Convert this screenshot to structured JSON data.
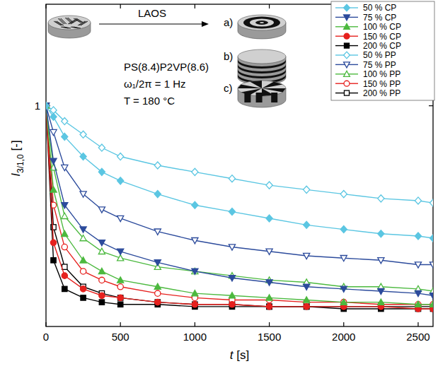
{
  "chart_data": {
    "type": "line",
    "xlabel": {
      "main": "t",
      "unit": "[s]"
    },
    "ylabel": {
      "main": "I",
      "sub": "3/1,0",
      "unit": "[-]"
    },
    "annotations": [
      "LAOS",
      "a)",
      "b)",
      "c)",
      "PS(8.4)P2VP(8.6)",
      "ω₁/2π = 1 Hz",
      "T = 180 °C"
    ],
    "x": [
      0,
      50,
      125,
      250,
      375,
      500,
      750,
      1000,
      1250,
      1500,
      1750,
      2000,
      2250,
      2500,
      2600
    ],
    "xlim": [
      0,
      2600
    ],
    "xticks": [
      0,
      500,
      1000,
      1500,
      2000,
      2500
    ],
    "ylim": [
      0,
      1.46
    ],
    "yticks": [
      1
    ],
    "grid": false,
    "legend": "upper right",
    "series": [
      {
        "name": "50 % CP",
        "color": "#5bc6e2",
        "marker": "diamond",
        "values": [
          1.0,
          0.95,
          0.86,
          0.77,
          0.7,
          0.66,
          0.6,
          0.55,
          0.52,
          0.49,
          0.46,
          0.44,
          0.42,
          0.41,
          0.4
        ]
      },
      {
        "name": "75 % CP",
        "color": "#2c4b9c",
        "marker": "triangle-down",
        "values": [
          1.0,
          0.75,
          0.55,
          0.44,
          0.38,
          0.34,
          0.29,
          0.25,
          0.22,
          0.2,
          0.18,
          0.17,
          0.16,
          0.15,
          0.14
        ]
      },
      {
        "name": "100 % CP",
        "color": "#4cb93f",
        "marker": "triangle-up",
        "values": [
          1.0,
          0.62,
          0.42,
          0.3,
          0.25,
          0.21,
          0.18,
          0.15,
          0.14,
          0.13,
          0.12,
          0.11,
          0.11,
          0.1,
          0.1
        ]
      },
      {
        "name": "150 % CP",
        "color": "#e6211e",
        "marker": "circle",
        "values": [
          1.0,
          0.38,
          0.23,
          0.17,
          0.14,
          0.13,
          0.11,
          0.1,
          0.1,
          0.09,
          0.09,
          0.09,
          0.09,
          0.08,
          0.08
        ]
      },
      {
        "name": "200 % CP",
        "color": "#000000",
        "marker": "square",
        "values": [
          1.0,
          0.3,
          0.17,
          0.13,
          0.11,
          0.1,
          0.1,
          0.09,
          0.09,
          0.09,
          0.09,
          0.08,
          0.08,
          0.08,
          0.08
        ]
      },
      {
        "name": "50 % PP",
        "color": "#5bc6e2",
        "marker": "diamond-open",
        "values": [
          1.0,
          0.98,
          0.93,
          0.87,
          0.81,
          0.77,
          0.73,
          0.7,
          0.67,
          0.64,
          0.62,
          0.6,
          0.58,
          0.57,
          0.56
        ]
      },
      {
        "name": "75 % PP",
        "color": "#2c4b9c",
        "marker": "triangle-down-open",
        "values": [
          1.0,
          0.88,
          0.72,
          0.6,
          0.53,
          0.49,
          0.43,
          0.39,
          0.36,
          0.34,
          0.32,
          0.31,
          0.3,
          0.28,
          0.28
        ]
      },
      {
        "name": "100 % PP",
        "color": "#4cb93f",
        "marker": "triangle-up-open",
        "values": [
          1.0,
          0.72,
          0.5,
          0.4,
          0.34,
          0.31,
          0.27,
          0.25,
          0.23,
          0.21,
          0.2,
          0.18,
          0.18,
          0.17,
          0.16
        ]
      },
      {
        "name": "150 % PP",
        "color": "#e6211e",
        "marker": "circle-open",
        "values": [
          1.0,
          0.55,
          0.36,
          0.25,
          0.21,
          0.18,
          0.15,
          0.13,
          0.12,
          0.12,
          0.11,
          0.11,
          0.1,
          0.1,
          0.1
        ]
      },
      {
        "name": "200 % PP",
        "color": "#000000",
        "marker": "square-open",
        "values": [
          1.0,
          0.45,
          0.27,
          0.18,
          0.15,
          0.13,
          0.11,
          0.1,
          0.1,
          0.09,
          0.09,
          0.09,
          0.09,
          0.09,
          0.09
        ]
      }
    ]
  }
}
